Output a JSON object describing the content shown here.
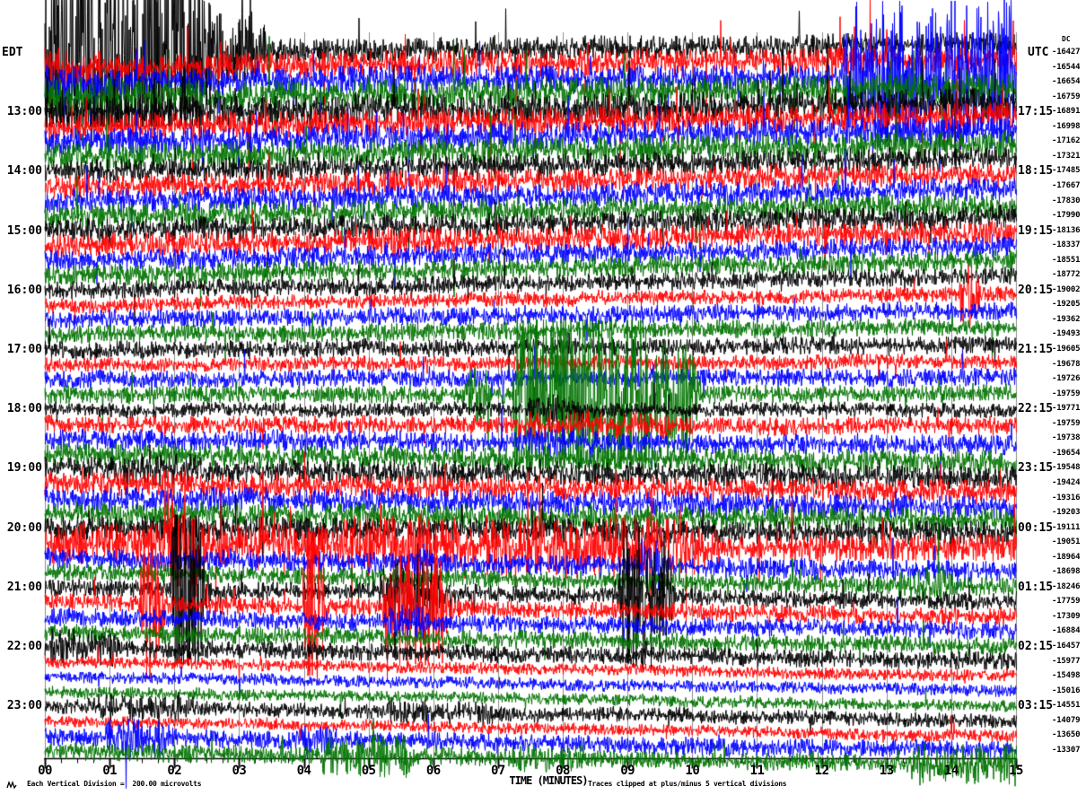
{
  "header": {
    "left_tz": "EDT",
    "right_tz": "UTC",
    "dc_header": "DC"
  },
  "footer": {
    "scale_note": "Each Vertical Division =  200.00 microvolts",
    "clip_note": "Traces clipped at plus/minus 5 vertical divisions",
    "logo_icon": "seismo-squiggle"
  },
  "axis": {
    "title": "TIME (MINUTES)",
    "ticks": [
      "00",
      "01",
      "02",
      "03",
      "04",
      "05",
      "06",
      "07",
      "08",
      "09",
      "10",
      "11",
      "12",
      "13",
      "14",
      "15"
    ]
  },
  "colors": {
    "black": "#000000",
    "red": "#ff0000",
    "blue": "#0000ff",
    "green": "#007300",
    "grid": "#8c8c8c"
  },
  "chart_data": {
    "type": "line",
    "subtype": "helicorder-seismogram",
    "xlabel": "TIME (MINUTES)",
    "x_range_minutes": [
      0,
      15
    ],
    "minutes_per_row": 15,
    "division_microvolts": 200.0,
    "clip_divisions": 5,
    "color_cycle": [
      "black",
      "red",
      "blue",
      "green"
    ],
    "grid": "vertical minute lines",
    "rows": [
      {
        "edt": "EDT",
        "utc": "UTC",
        "dc": "-16427",
        "color": "black",
        "amp": 8,
        "slope": -9.7,
        "sp": 0.03,
        "sf": 3,
        "ev": [
          [
            0,
            2.4,
            95
          ],
          [
            2.4,
            3.3,
            26
          ]
        ]
      },
      {
        "edt": "",
        "utc": "",
        "dc": "-16544",
        "color": "red",
        "amp": 9,
        "slope": -9.1,
        "sp": 0.03,
        "sf": 3,
        "ev": [
          [
            0,
            0.8,
            14
          ]
        ]
      },
      {
        "edt": "",
        "utc": "",
        "dc": "-16654",
        "color": "blue",
        "amp": 9,
        "slope": -8.7,
        "sp": 0.03,
        "sf": 3,
        "ev": [
          [
            0,
            0.7,
            12
          ],
          [
            12.35,
            15,
            48
          ]
        ]
      },
      {
        "edt": "",
        "utc": "",
        "dc": "-16759",
        "color": "green",
        "amp": 10,
        "slope": -10.9,
        "sp": 0.03,
        "sf": 3,
        "ev": [
          [
            0,
            1.2,
            13
          ]
        ]
      },
      {
        "edt": "13:00",
        "utc": "17:15",
        "dc": "-16891",
        "color": "black",
        "amp": 10,
        "slope": -8.9,
        "sp": 0.035,
        "sf": 3,
        "ev": [
          [
            0,
            2.9,
            5
          ]
        ]
      },
      {
        "edt": "",
        "utc": "",
        "dc": "-16998",
        "color": "red",
        "amp": 9,
        "slope": -13.6,
        "sp": 0.025,
        "sf": 3,
        "ev": []
      },
      {
        "edt": "",
        "utc": "",
        "dc": "-17162",
        "color": "blue",
        "amp": 9,
        "slope": -13.2,
        "sp": 0.02,
        "sf": 3,
        "ev": []
      },
      {
        "edt": "",
        "utc": "",
        "dc": "-17321",
        "color": "green",
        "amp": 9,
        "slope": -13.6,
        "sp": 0.02,
        "sf": 3,
        "ev": []
      },
      {
        "edt": "14:00",
        "utc": "18:15",
        "dc": "-17485",
        "color": "black",
        "amp": 8,
        "slope": -15.1,
        "sp": 0.015,
        "sf": 2.6,
        "ev": []
      },
      {
        "edt": "",
        "utc": "",
        "dc": "-17667",
        "color": "red",
        "amp": 8,
        "slope": -13.5,
        "sp": 0.012,
        "sf": 2.6,
        "ev": []
      },
      {
        "edt": "",
        "utc": "",
        "dc": "-17830",
        "color": "blue",
        "amp": 8,
        "slope": -13.2,
        "sp": 0.012,
        "sf": 2.6,
        "ev": []
      },
      {
        "edt": "",
        "utc": "",
        "dc": "-17990",
        "color": "green",
        "amp": 8,
        "slope": -12.1,
        "sp": 0.012,
        "sf": 2.6,
        "ev": []
      },
      {
        "edt": "15:00",
        "utc": "19:15",
        "dc": "-18136",
        "color": "black",
        "amp": 8,
        "slope": -16,
        "sp": 0.01,
        "sf": 2.6,
        "ev": [
          [
            5.3,
            5.9,
            7
          ]
        ]
      },
      {
        "edt": "",
        "utc": "",
        "dc": "-18337",
        "color": "red",
        "amp": 8,
        "slope": -16,
        "sp": 0.01,
        "sf": 2.6,
        "ev": [
          [
            5.2,
            6.0,
            12
          ]
        ]
      },
      {
        "edt": "",
        "utc": "",
        "dc": "-18551",
        "color": "blue",
        "amp": 7,
        "slope": -16,
        "sp": 0.01,
        "sf": 2.6,
        "ev": []
      },
      {
        "edt": "",
        "utc": "",
        "dc": "-18772",
        "color": "green",
        "amp": 7,
        "slope": -16,
        "sp": 0.01,
        "sf": 2.6,
        "ev": []
      },
      {
        "edt": "16:00",
        "utc": "20:15",
        "dc": "-19002",
        "color": "black",
        "amp": 6,
        "slope": -16,
        "sp": 0.008,
        "sf": 2.6,
        "ev": []
      },
      {
        "edt": "",
        "utc": "",
        "dc": "-19205",
        "color": "red",
        "amp": 5,
        "slope": -13,
        "sp": 0.008,
        "sf": 2.6,
        "ev": [
          [
            14.15,
            14.3,
            26
          ]
        ]
      },
      {
        "edt": "",
        "utc": "",
        "dc": "-19362",
        "color": "blue",
        "amp": 6,
        "slope": -10.8,
        "sp": 0.008,
        "sf": 2.6,
        "ev": []
      },
      {
        "edt": "",
        "utc": "",
        "dc": "-19493",
        "color": "green",
        "amp": 6,
        "slope": -9.3,
        "sp": 0.008,
        "sf": 2.6,
        "ev": []
      },
      {
        "edt": "17:00",
        "utc": "21:15",
        "dc": "-19605",
        "color": "black",
        "amp": 6,
        "slope": -6,
        "sp": 0.008,
        "sf": 2.6,
        "ev": []
      },
      {
        "edt": "",
        "utc": "",
        "dc": "-19678",
        "color": "red",
        "amp": 5,
        "slope": -4,
        "sp": 0.008,
        "sf": 2.6,
        "ev": []
      },
      {
        "edt": "",
        "utc": "",
        "dc": "-19726",
        "color": "blue",
        "amp": 6,
        "slope": -2.7,
        "sp": 0.008,
        "sf": 2.6,
        "ev": []
      },
      {
        "edt": "",
        "utc": "",
        "dc": "-19759",
        "color": "green",
        "amp": 6,
        "slope": -1,
        "sp": 0.008,
        "sf": 2.6,
        "ev": [
          [
            6.5,
            6.8,
            18
          ],
          [
            7.25,
            9.3,
            62
          ],
          [
            9.3,
            9.95,
            40
          ]
        ]
      },
      {
        "edt": "18:00",
        "utc": "22:15",
        "dc": "-19771",
        "color": "black",
        "amp": 5,
        "slope": 1,
        "sp": 0.008,
        "sf": 2.6,
        "ev": [
          [
            7.5,
            8.3,
            10
          ]
        ]
      },
      {
        "edt": "",
        "utc": "",
        "dc": "-19759",
        "color": "red",
        "amp": 6,
        "slope": 1.7,
        "sp": 0.008,
        "sf": 2.6,
        "ev": [
          [
            7.3,
            9.6,
            9
          ]
        ]
      },
      {
        "edt": "",
        "utc": "",
        "dc": "-19738",
        "color": "blue",
        "amp": 7,
        "slope": 7,
        "sp": 0.008,
        "sf": 2.6,
        "ev": [
          [
            7.4,
            8.5,
            10
          ]
        ]
      },
      {
        "edt": "",
        "utc": "",
        "dc": "-19654",
        "color": "green",
        "amp": 8,
        "slope": 8.8,
        "sp": 0.008,
        "sf": 2.6,
        "ev": []
      },
      {
        "edt": "19:00",
        "utc": "23:15",
        "dc": "-19548",
        "color": "black",
        "amp": 8,
        "slope": 10.3,
        "sp": 0.01,
        "sf": 2.6,
        "ev": [
          [
            1.2,
            2.4,
            11
          ]
        ]
      },
      {
        "edt": "",
        "utc": "",
        "dc": "-19424",
        "color": "red",
        "amp": 8,
        "slope": 8.9,
        "sp": 0.01,
        "sf": 2.6,
        "ev": []
      },
      {
        "edt": "",
        "utc": "",
        "dc": "-19316",
        "color": "blue",
        "amp": 8,
        "slope": 9.4,
        "sp": 0.01,
        "sf": 2.6,
        "ev": []
      },
      {
        "edt": "",
        "utc": "",
        "dc": "-19203",
        "color": "green",
        "amp": 8,
        "slope": 7.6,
        "sp": 0.01,
        "sf": 2.6,
        "ev": []
      },
      {
        "edt": "20:00",
        "utc": "00:15",
        "dc": "-19111",
        "color": "black",
        "amp": 8,
        "slope": 5,
        "sp": 0.012,
        "sf": 2.6,
        "ev": []
      },
      {
        "edt": "",
        "utc": "",
        "dc": "-19051",
        "color": "red",
        "amp": 9,
        "slope": 7.2,
        "sp": 0.025,
        "sf": 3,
        "ev": [
          [
            0.1,
            10.4,
            14
          ],
          [
            1.85,
            2.35,
            34
          ],
          [
            4.6,
            6.3,
            21
          ],
          [
            6.8,
            10,
            21
          ]
        ]
      },
      {
        "edt": "",
        "utc": "",
        "dc": "-18964",
        "color": "blue",
        "amp": 7,
        "slope": 16,
        "sp": 0.01,
        "sf": 2.6,
        "ev": [
          [
            5.7,
            5.9,
            14
          ],
          [
            9.2,
            9.5,
            18
          ]
        ]
      },
      {
        "edt": "",
        "utc": "",
        "dc": "-18698",
        "color": "green",
        "amp": 6,
        "slope": 16,
        "sp": 0.01,
        "sf": 2.6,
        "ev": [
          [
            13.2,
            13.95,
            13
          ]
        ]
      },
      {
        "edt": "21:00",
        "utc": "01:15",
        "dc": "-18246",
        "color": "black",
        "amp": 6,
        "slope": 16,
        "sp": 0.01,
        "sf": 2.6,
        "ev": [
          [
            2,
            2.3,
            90
          ],
          [
            5.2,
            6.05,
            22
          ],
          [
            8.9,
            9.55,
            48
          ]
        ]
      },
      {
        "edt": "",
        "utc": "",
        "dc": "-17759",
        "color": "red",
        "amp": 6,
        "slope": 16,
        "sp": 0.01,
        "sf": 2.6,
        "ev": [
          [
            1.52,
            1.64,
            85
          ],
          [
            4.03,
            4.14,
            85
          ],
          [
            5.25,
            6.15,
            38
          ]
        ]
      },
      {
        "edt": "",
        "utc": "",
        "dc": "-17309",
        "color": "blue",
        "amp": 6,
        "slope": 16,
        "sp": 0.01,
        "sf": 2.6,
        "ev": [
          [
            5.3,
            5.85,
            12
          ]
        ]
      },
      {
        "edt": "",
        "utc": "",
        "dc": "-16884",
        "color": "green",
        "amp": 6,
        "slope": 16,
        "sp": 0.008,
        "sf": 2.6,
        "ev": []
      },
      {
        "edt": "22:00",
        "utc": "02:15",
        "dc": "-16457",
        "color": "black",
        "amp": 6,
        "slope": 16,
        "sp": 0.008,
        "sf": 2.6,
        "ev": [
          [
            0.1,
            1.05,
            13
          ]
        ]
      },
      {
        "edt": "",
        "utc": "",
        "dc": "-15977",
        "color": "red",
        "amp": 4,
        "slope": 16,
        "sp": 0.005,
        "sf": 2.6,
        "ev": []
      },
      {
        "edt": "",
        "utc": "",
        "dc": "-15498",
        "color": "blue",
        "amp": 4,
        "slope": 16,
        "sp": 0.005,
        "sf": 2.6,
        "ev": []
      },
      {
        "edt": "",
        "utc": "",
        "dc": "-15016",
        "color": "green",
        "amp": 4,
        "slope": 16,
        "sp": 0.006,
        "sf": 2.6,
        "ev": []
      },
      {
        "edt": "23:00",
        "utc": "03:15",
        "dc": "-14551",
        "color": "black",
        "amp": 5,
        "slope": 16,
        "sp": 0.006,
        "sf": 2.6,
        "ev": [
          [
            0.7,
            2.3,
            9
          ],
          [
            5.3,
            7,
            8
          ]
        ]
      },
      {
        "edt": "",
        "utc": "",
        "dc": "-14079",
        "color": "red",
        "amp": 4,
        "slope": 16,
        "sp": 0.005,
        "sf": 2.6,
        "ev": []
      },
      {
        "edt": "",
        "utc": "",
        "dc": "-13650",
        "color": "blue",
        "amp": 6,
        "slope": 16,
        "sp": 0.008,
        "sf": 2.6,
        "ev": [
          [
            0.95,
            1.9,
            13
          ],
          [
            3.95,
            4.45,
            10
          ],
          [
            11,
            15,
            4
          ]
        ]
      },
      {
        "edt": "",
        "utc": "",
        "dc": "-13307",
        "color": "green",
        "amp": 6,
        "slope": 16,
        "sp": 0.008,
        "sf": 2.6,
        "ev": [
          [
            4.3,
            5.6,
            14
          ],
          [
            7.2,
            8.2,
            9
          ],
          [
            13.4,
            15,
            14
          ]
        ]
      }
    ]
  }
}
